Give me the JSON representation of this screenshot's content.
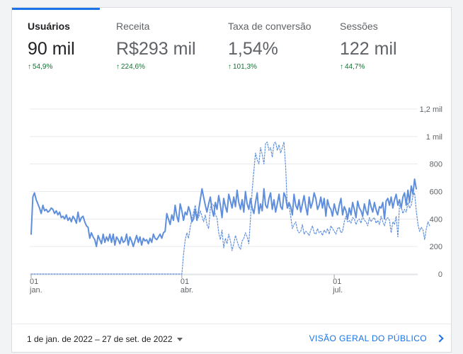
{
  "metrics": [
    {
      "label": "Usuários",
      "value": "90 mil",
      "change": "54,9%"
    },
    {
      "label": "Receita",
      "value": "R$293 mil",
      "change": "224,6%"
    },
    {
      "label": "Taxa de conversão",
      "value": "1,54%",
      "change": "101,3%"
    },
    {
      "label": "Sessões",
      "value": "122 mil",
      "change": "44,7%"
    }
  ],
  "colors": {
    "accent": "#1a73e8",
    "series": "#5f8fdc",
    "positive": "#137333"
  },
  "icons": {
    "change": "arrow-up-icon",
    "date": "caret-down-icon",
    "link": "chevron-right-icon"
  },
  "chart_data": {
    "type": "line",
    "title": "",
    "xlabel": "",
    "ylabel": "",
    "x_ticks": [
      {
        "day": "01",
        "month": "jan."
      },
      {
        "day": "01",
        "month": "abr."
      },
      {
        "day": "01",
        "month": "jul."
      }
    ],
    "x_range": [
      "2022-01-01",
      "2022-09-27"
    ],
    "y_ticks": [
      "0",
      "200",
      "400",
      "600",
      "800",
      "1 mil",
      "1,2 mil"
    ],
    "ylim": [
      0,
      1200
    ],
    "grid": true,
    "legend": "none",
    "series": [
      {
        "style": "solid",
        "values": [
          290,
          560,
          590,
          540,
          510,
          480,
          440,
          500,
          460,
          470,
          450,
          460,
          480,
          470,
          440,
          460,
          430,
          450,
          410,
          420,
          400,
          430,
          390,
          410,
          380,
          420,
          400,
          370,
          450,
          380,
          410,
          420,
          380,
          350,
          340,
          260,
          300,
          270,
          250,
          200,
          280,
          250,
          220,
          290,
          230,
          270,
          240,
          290,
          230,
          290,
          210,
          270,
          250,
          220,
          270,
          230,
          240,
          290,
          210,
          270,
          240,
          200,
          240,
          280,
          230,
          270,
          210,
          260,
          240,
          250,
          220,
          260,
          230,
          290,
          260,
          250,
          270,
          290,
          260,
          300,
          310,
          440,
          400,
          360,
          430,
          390,
          500,
          420,
          380,
          510,
          460,
          390,
          450,
          430,
          490,
          450,
          380,
          400,
          470,
          390,
          460,
          540,
          620,
          560,
          500,
          450,
          510,
          560,
          470,
          420,
          520,
          470,
          570,
          500,
          410,
          550,
          490,
          450,
          580,
          530,
          480,
          560,
          490,
          610,
          520,
          470,
          540,
          450,
          600,
          510,
          470,
          550,
          480,
          440,
          520,
          590,
          440,
          510,
          460,
          620,
          500,
          480,
          550,
          590,
          470,
          540,
          450,
          510,
          580,
          490,
          470,
          590,
          560,
          480,
          520,
          490,
          430,
          580,
          500,
          470,
          540,
          450,
          510,
          570,
          490,
          430,
          560,
          480,
          520,
          590,
          550,
          470,
          500,
          560,
          480,
          550,
          420,
          540,
          490,
          470,
          420,
          510,
          460,
          430,
          500,
          550,
          430,
          490,
          460,
          400,
          480,
          430,
          520,
          470,
          410,
          530,
          480,
          460,
          420,
          510,
          460,
          430,
          540,
          490,
          450,
          520,
          470,
          430,
          490,
          480,
          520,
          400,
          530,
          550,
          500,
          560,
          480,
          540,
          580,
          500,
          540,
          480,
          560,
          590,
          500,
          610,
          520,
          640,
          580,
          690,
          620
        ]
      },
      {
        "style": "dotted",
        "values": [
          0,
          0,
          0,
          0,
          0,
          0,
          0,
          0,
          0,
          0,
          0,
          0,
          0,
          0,
          0,
          0,
          0,
          0,
          0,
          0,
          0,
          0,
          0,
          0,
          0,
          0,
          0,
          0,
          0,
          0,
          0,
          0,
          0,
          0,
          0,
          0,
          0,
          0,
          0,
          0,
          0,
          0,
          0,
          0,
          0,
          0,
          0,
          0,
          0,
          0,
          0,
          0,
          0,
          0,
          0,
          0,
          0,
          0,
          0,
          0,
          0,
          0,
          0,
          0,
          0,
          0,
          0,
          0,
          0,
          0,
          0,
          0,
          0,
          0,
          0,
          0,
          0,
          0,
          0,
          0,
          0,
          0,
          0,
          0,
          0,
          0,
          0,
          0,
          0,
          0,
          0,
          140,
          250,
          300,
          260,
          340,
          400,
          450,
          500,
          420,
          410,
          460,
          420,
          380,
          430,
          360,
          330,
          480,
          510,
          500,
          430,
          410,
          300,
          250,
          320,
          190,
          260,
          220,
          290,
          240,
          170,
          220,
          280,
          240,
          200,
          180,
          240,
          260,
          300,
          270,
          220,
          400,
          610,
          750,
          880,
          830,
          800,
          920,
          870,
          800,
          950,
          960,
          900,
          920,
          850,
          950,
          960,
          900,
          940,
          880,
          920,
          960,
          780,
          480,
          500,
          420,
          330,
          360,
          380,
          320,
          300,
          310,
          360,
          290,
          310,
          300,
          280,
          320,
          350,
          300,
          290,
          330,
          300,
          310,
          280,
          320,
          300,
          330,
          290,
          350,
          330,
          310,
          290,
          330,
          340,
          300,
          310,
          380,
          420,
          380,
          390,
          370,
          410,
          400,
          360,
          390,
          400,
          370,
          420,
          390,
          380,
          350,
          410,
          380,
          400,
          410,
          370,
          390,
          360,
          420,
          380,
          350,
          400,
          410,
          390,
          300,
          380,
          360,
          420,
          270,
          500,
          490,
          440,
          470,
          450,
          520,
          480,
          500,
          570,
          590,
          460,
          360,
          310,
          340,
          320,
          250,
          330,
          380,
          350
        ]
      }
    ]
  },
  "footer": {
    "date_range": "1 de jan. de 2022 – 27 de set. de 2022",
    "link_label": "VISÃO GERAL DO PÚBLICO"
  }
}
